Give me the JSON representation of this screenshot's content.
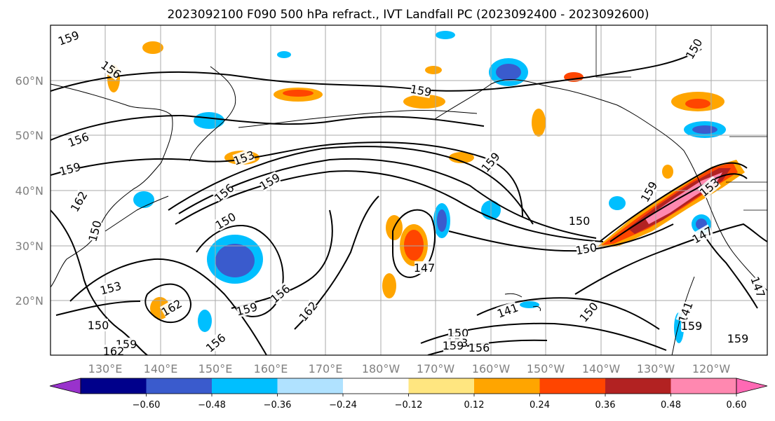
{
  "title": "2023092100 F090 500 hPa refract., IVT Landfall PC (2023092400 - 2023092600)",
  "map": {
    "lon_range": [
      120,
      -110
    ],
    "lat_range": [
      10,
      70
    ],
    "lon_labels": [
      "130°E",
      "140°E",
      "150°E",
      "160°E",
      "170°E",
      "180°W",
      "170°W",
      "160°W",
      "150°W",
      "140°W",
      "130°W",
      "120°W"
    ],
    "lat_labels": [
      "60°N",
      "50°N",
      "40°N",
      "30°N",
      "20°N"
    ],
    "gridlines": true,
    "contour_labels": [
      "159",
      "156",
      "156",
      "159",
      "162",
      "150",
      "153",
      "150",
      "162",
      "159",
      "153",
      "159",
      "156",
      "150",
      "162",
      "156",
      "159",
      "162",
      "156",
      "147",
      "159",
      "159",
      "150",
      "150",
      "150",
      "147",
      "150",
      "159",
      "153",
      "156",
      "141",
      "150",
      "153",
      "159",
      "159",
      "147",
      "141",
      "159",
      "159"
    ]
  },
  "colorbar": {
    "ticks": [
      "−0.60",
      "−0.48",
      "−0.36",
      "−0.24",
      "−0.12",
      "0.12",
      "0.24",
      "0.36",
      "0.48",
      "0.60"
    ],
    "colors": [
      "#9932cc",
      "#00008b",
      "#3a5bcd",
      "#00bfff",
      "#b0e2ff",
      "#ffffff",
      "#ffe680",
      "#ffa500",
      "#ff4500",
      "#b22222",
      "#ff88b0",
      "#ff69b4"
    ],
    "extend": "both"
  }
}
